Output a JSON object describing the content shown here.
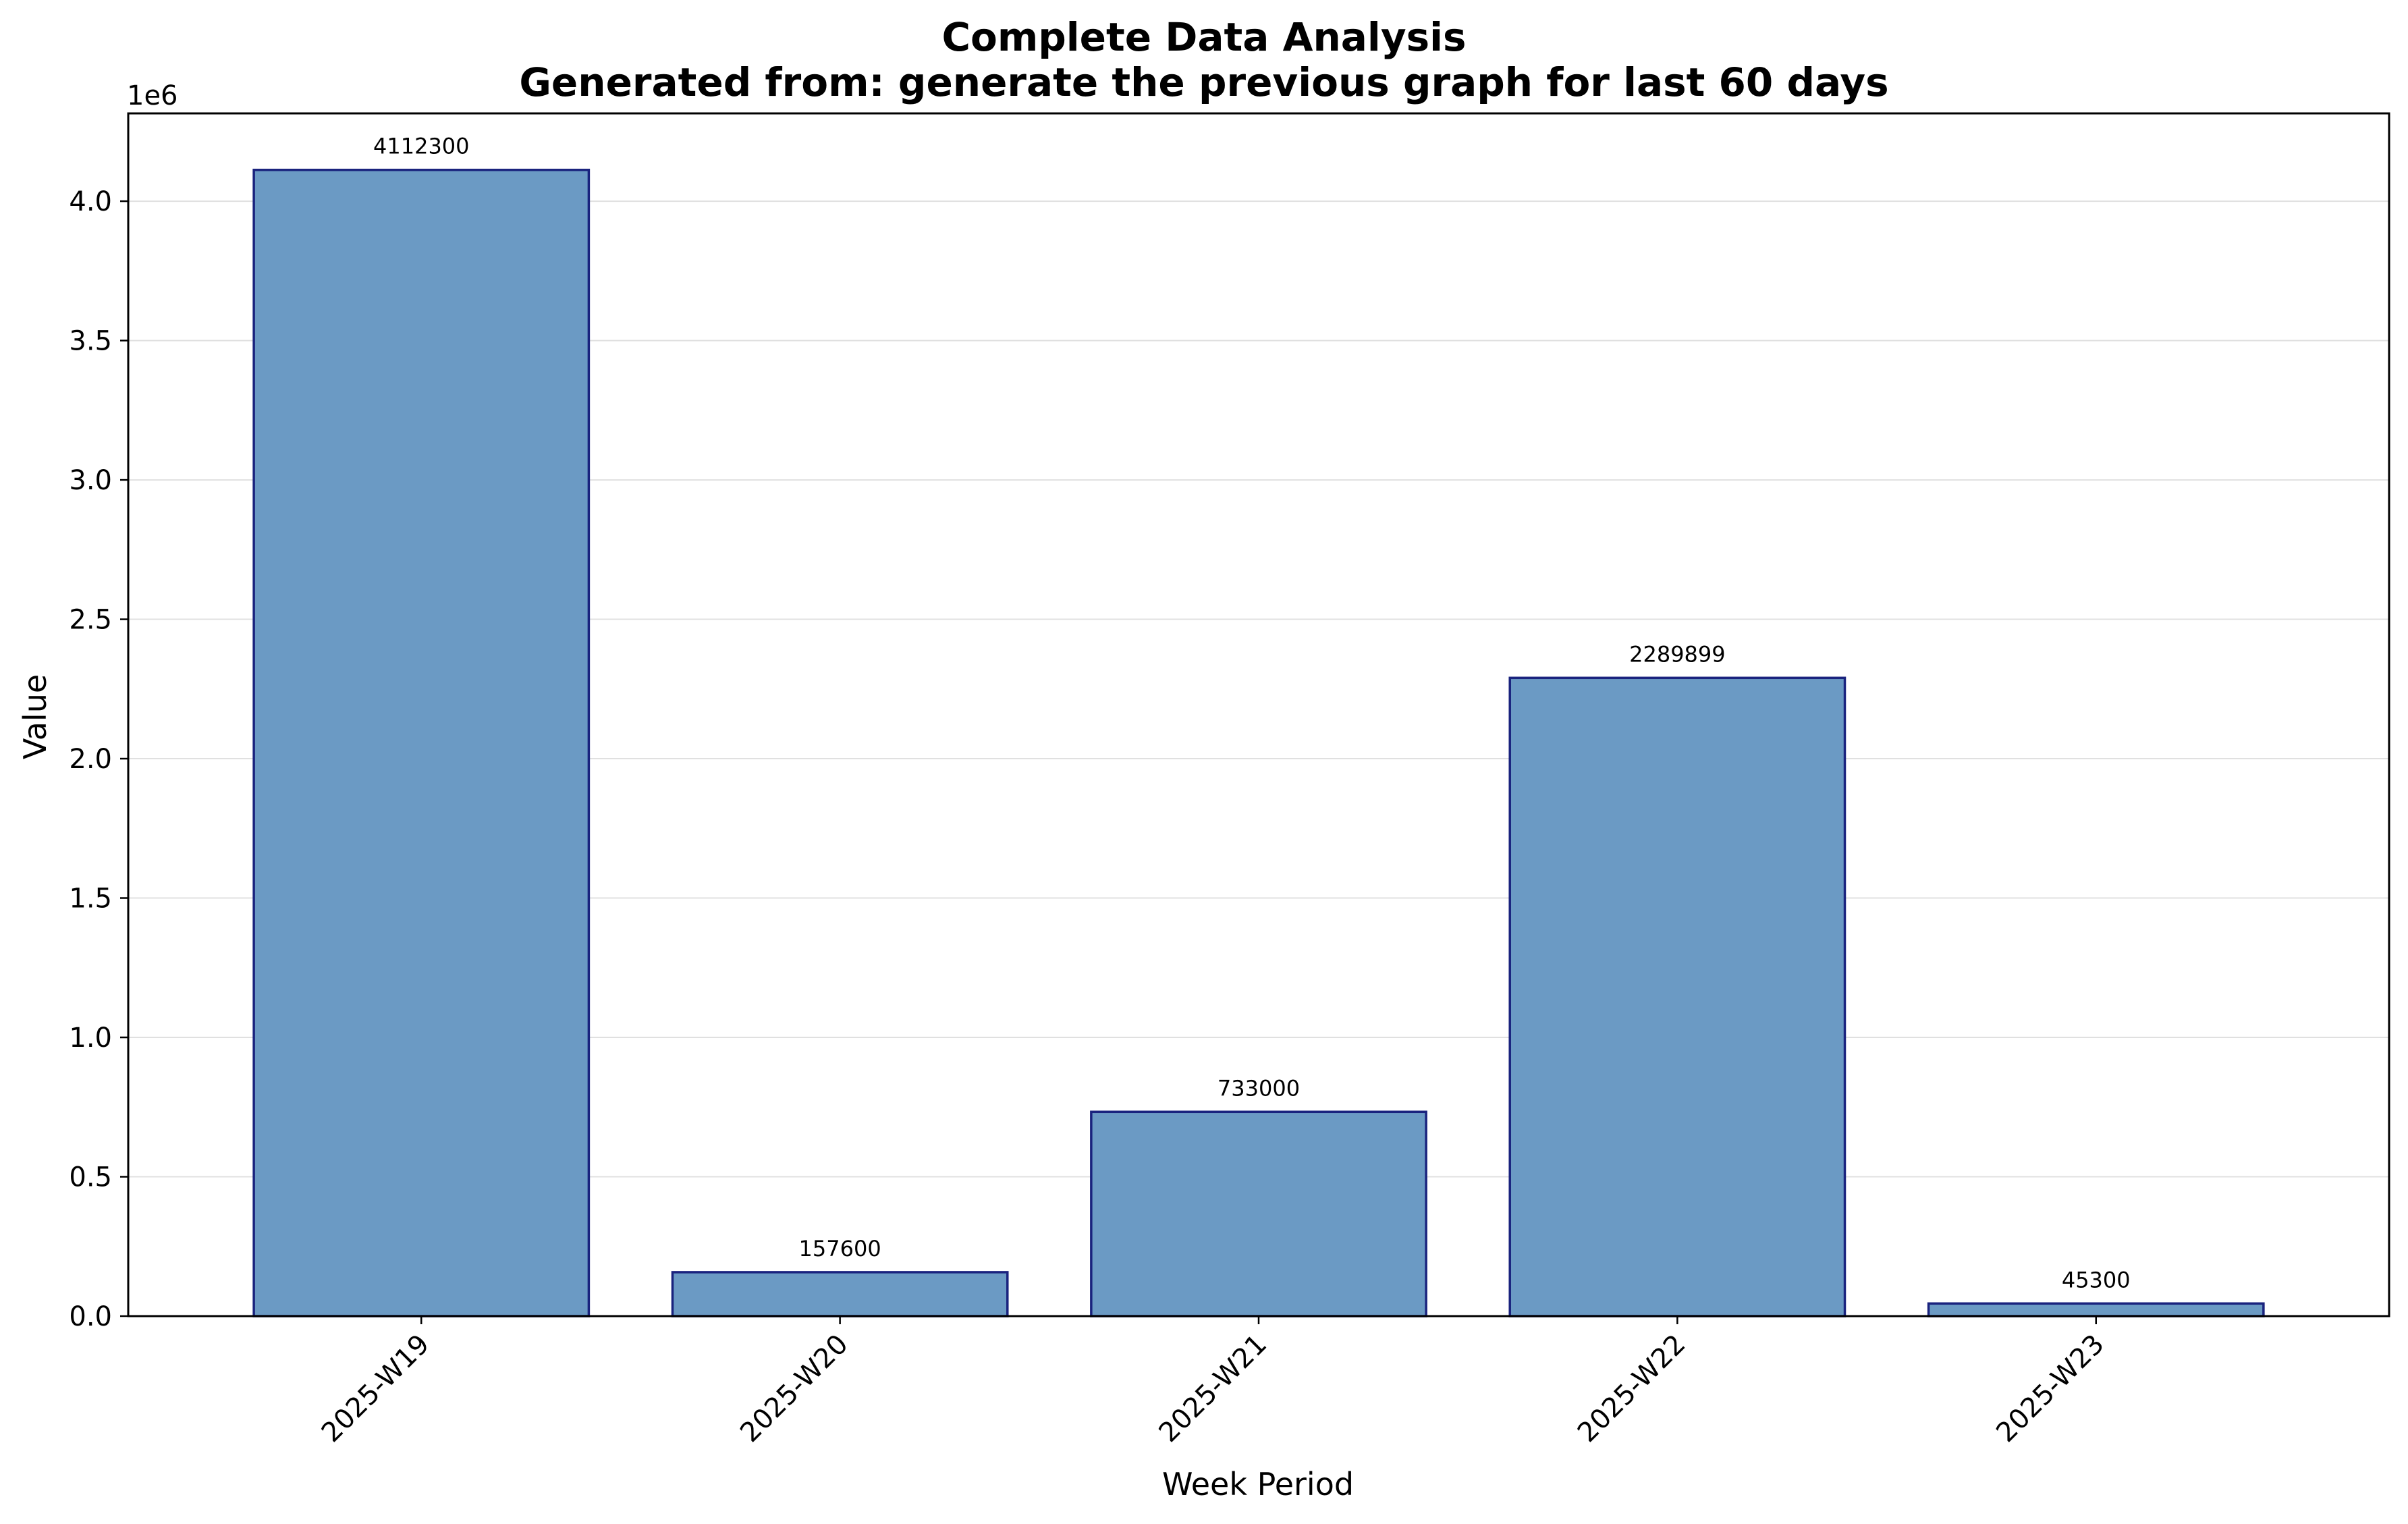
{
  "chart_data": {
    "type": "bar",
    "title": "Complete Data Analysis",
    "subtitle": "Generated from: generate the previous graph for last 60 days",
    "xlabel": "Week Period",
    "ylabel": "Value",
    "y_offset_label": "1e6",
    "categories": [
      "2025-W19",
      "2025-W20",
      "2025-W21",
      "2025-W22",
      "2025-W23"
    ],
    "values": [
      4112300,
      157600,
      733000,
      2289899,
      45300
    ],
    "data_labels": [
      "4112300",
      "157600",
      "733000",
      "2289899",
      "45300"
    ],
    "ylim": [
      0,
      4315000
    ],
    "yticks": [
      0,
      500000,
      1000000,
      1500000,
      2000000,
      2500000,
      3000000,
      3500000,
      4000000
    ],
    "ytick_labels": [
      "0.0",
      "0.5",
      "1.0",
      "1.5",
      "2.0",
      "2.5",
      "3.0",
      "3.5",
      "4.0"
    ],
    "grid": "horizontal",
    "legend": "none",
    "colors": {
      "bar_fill": "#6b9ac4",
      "bar_edge": "#1a237e",
      "grid": "#e0e0e0",
      "axis": "#000000"
    }
  }
}
